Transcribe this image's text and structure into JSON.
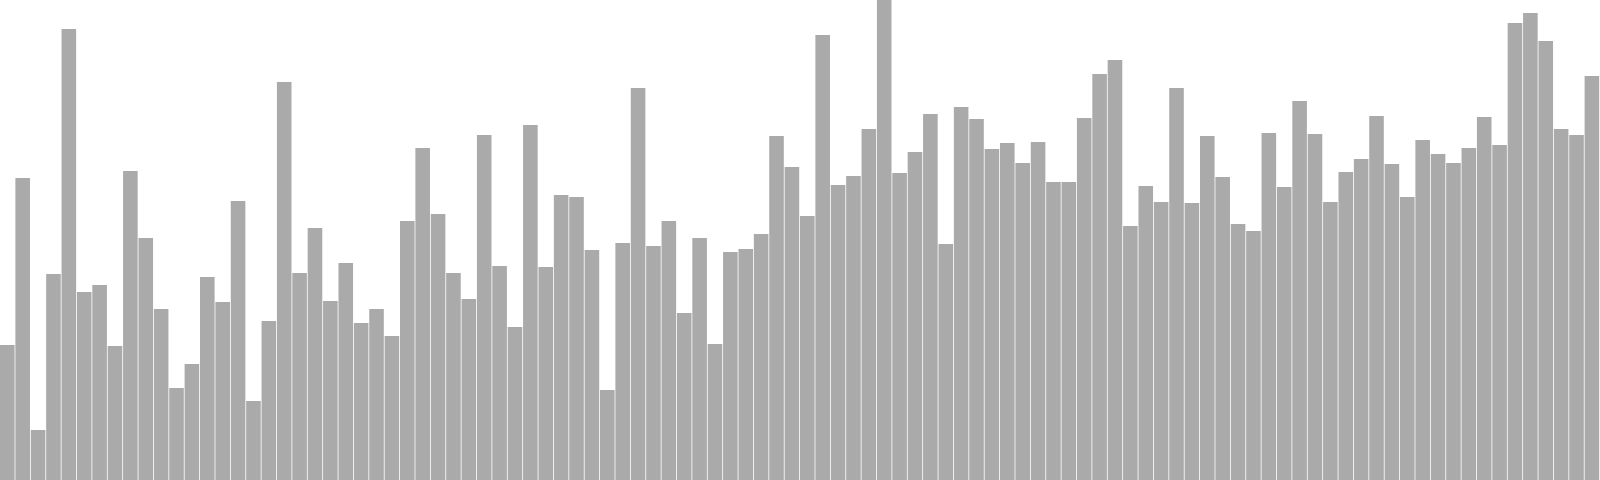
{
  "chart_data": {
    "type": "bar",
    "title": "",
    "xlabel": "",
    "ylabel": "",
    "ylim": [
      0,
      480
    ],
    "grid": false,
    "legend": "none",
    "bar_color": "#aaaaaa",
    "values": [
      135,
      302,
      50,
      206,
      451,
      188,
      195,
      134,
      309,
      242,
      171,
      92,
      116,
      203,
      178,
      279,
      79,
      159,
      398,
      207,
      252,
      179,
      217,
      157,
      171,
      144,
      259,
      332,
      266,
      207,
      181,
      345,
      214,
      153,
      355,
      213,
      285,
      283,
      230,
      90,
      237,
      392,
      234,
      259,
      167,
      242,
      136,
      228,
      231,
      246,
      344,
      313,
      264,
      445,
      295,
      304,
      351,
      480,
      307,
      328,
      366,
      236,
      373,
      361,
      331,
      337,
      317,
      338,
      298,
      298,
      362,
      406,
      420,
      254,
      294,
      278,
      392,
      277,
      344,
      303,
      256,
      249,
      347,
      293,
      379,
      346,
      278,
      308,
      321,
      364,
      316,
      283,
      340,
      326,
      317,
      332,
      363,
      335,
      457,
      467,
      439,
      351,
      345,
      404
    ]
  }
}
